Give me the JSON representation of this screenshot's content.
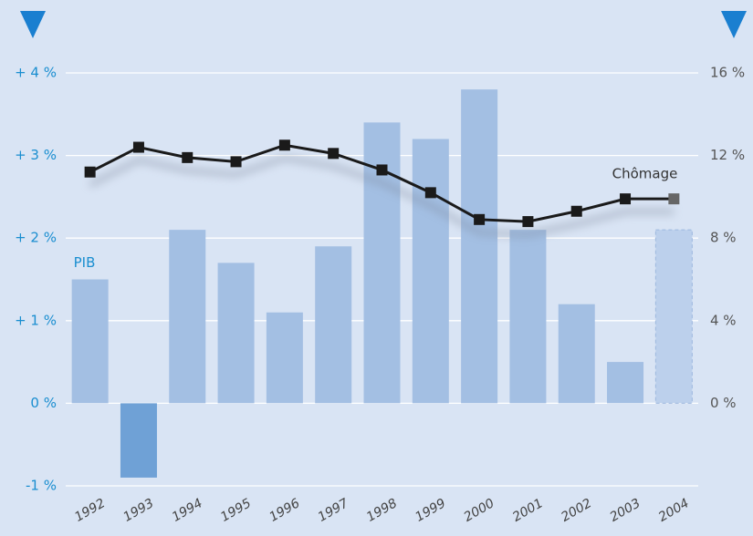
{
  "chart_data": {
    "type": "bar_line",
    "categories": [
      "1992",
      "1993",
      "1994",
      "1995",
      "1996",
      "1997",
      "1998",
      "1999",
      "2000",
      "2001",
      "2002",
      "2003",
      "2004"
    ],
    "series": [
      {
        "name": "PIB",
        "type": "bar",
        "color": "#a3bfe3",
        "negative_color": "#6fa1d6",
        "forecast_color": "#bcd0ec",
        "values": [
          1.5,
          -0.9,
          2.1,
          1.7,
          1.1,
          1.9,
          3.4,
          3.2,
          3.8,
          2.1,
          1.2,
          0.5,
          2.1
        ]
      },
      {
        "name": "Chômage",
        "type": "line",
        "axis": "y2",
        "color": "#1a1a1a",
        "values": [
          11.2,
          12.4,
          11.9,
          11.7,
          12.5,
          12.1,
          11.3,
          10.2,
          8.9,
          8.8,
          9.3,
          9.9,
          9.9
        ]
      }
    ],
    "forecast_categories": [
      "2004"
    ],
    "ylim": [
      -1,
      4
    ],
    "yticks": [
      {
        "value": -1,
        "label": "-1 %"
      },
      {
        "value": 0,
        "label": "0 %"
      },
      {
        "value": 1,
        "label": "+ 1 %"
      },
      {
        "value": 2,
        "label": "+ 2 %"
      },
      {
        "value": 3,
        "label": "+ 3 %"
      },
      {
        "value": 4,
        "label": "+ 4 %"
      }
    ],
    "y2lim": [
      -4,
      16
    ],
    "y2ticks": [
      {
        "value": 0,
        "label": "0 %"
      },
      {
        "value": 4,
        "label": "4 %"
      },
      {
        "value": 8,
        "label": "8 %"
      },
      {
        "value": 12,
        "label": "12 %"
      },
      {
        "value": 16,
        "label": "16 %"
      }
    ],
    "grid": true
  }
}
